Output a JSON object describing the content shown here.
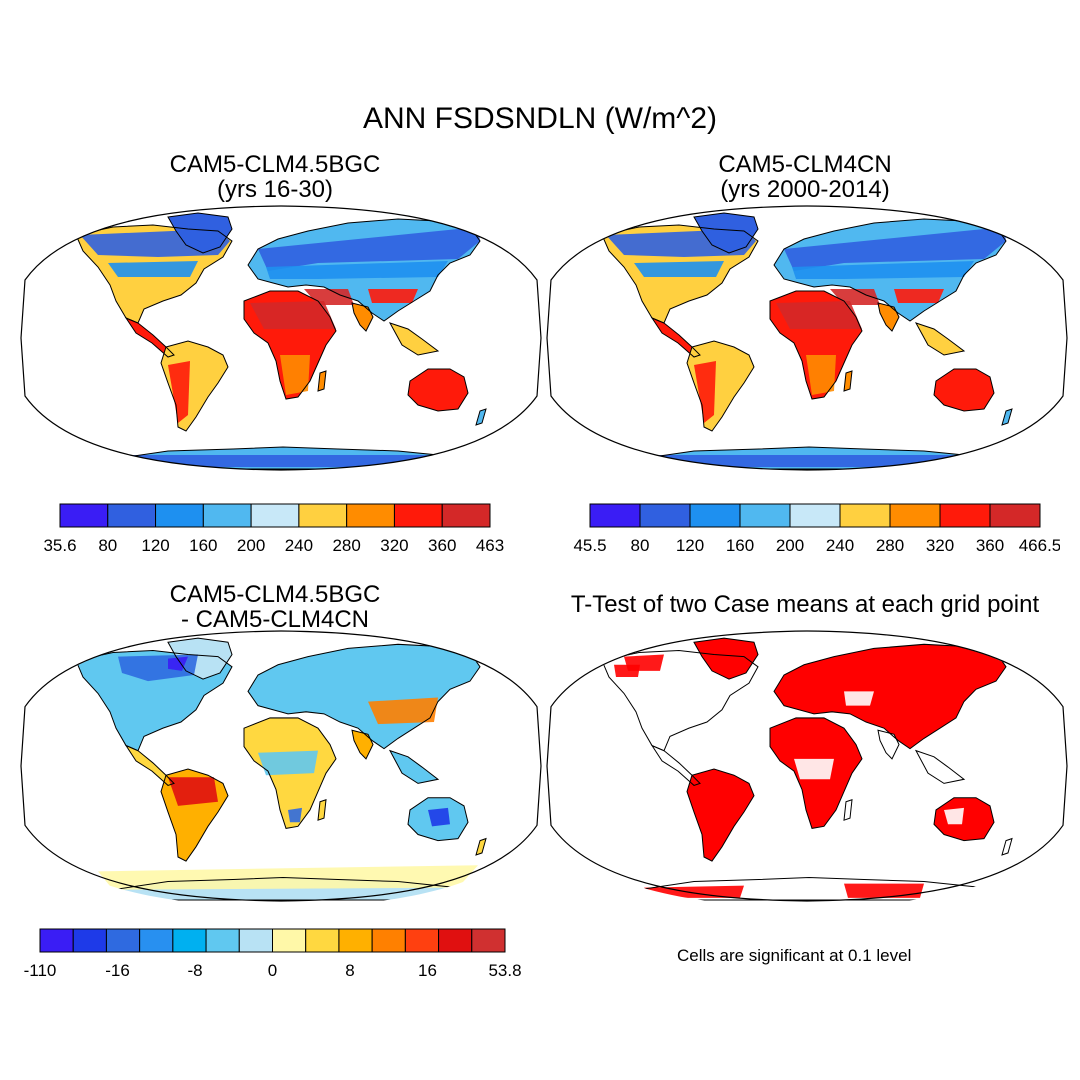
{
  "title": "ANN FSDSNDLN (W/m^2)",
  "panels": [
    {
      "line1": "CAM5-CLM4.5BGC",
      "line2": "(yrs 16-30)",
      "colorbar": {
        "labels": [
          "35.6",
          "80",
          "120",
          "160",
          "200",
          "240",
          "280",
          "320",
          "360",
          "463"
        ],
        "colors": [
          "#3a1df5",
          "#3060e0",
          "#1e90f0",
          "#50b8f0",
          "#c8e8f8",
          "#ffd040",
          "#ff8c00",
          "#ff1a0a",
          "#d42828"
        ]
      }
    },
    {
      "line1": "CAM5-CLM4CN",
      "line2": "(yrs 2000-2014)",
      "colorbar": {
        "labels": [
          "45.5",
          "80",
          "120",
          "160",
          "200",
          "240",
          "280",
          "320",
          "360",
          "466.5"
        ],
        "colors": [
          "#3a1df5",
          "#3060e0",
          "#1e90f0",
          "#50b8f0",
          "#c8e8f8",
          "#ffd040",
          "#ff8c00",
          "#ff1a0a",
          "#d42828"
        ]
      }
    },
    {
      "line1": "CAM5-CLM4.5BGC",
      "line2": "- CAM5-CLM4CN",
      "colorbar": {
        "labels": [
          "-110",
          "-16",
          "-8",
          "0",
          "8",
          "16",
          "53.8"
        ],
        "colors": [
          "#3a1df5",
          "#1e3ae8",
          "#2f6ae0",
          "#2890f0",
          "#00b0f0",
          "#60c8f0",
          "#b8e2f4",
          "#fff8a8",
          "#ffd840",
          "#ffb000",
          "#ff8000",
          "#ff4010",
          "#e01010",
          "#d03030"
        ]
      }
    },
    {
      "line1": "T-Test of two Case means at each grid point",
      "note": "Cells are significant at 0.1 level"
    }
  ]
}
